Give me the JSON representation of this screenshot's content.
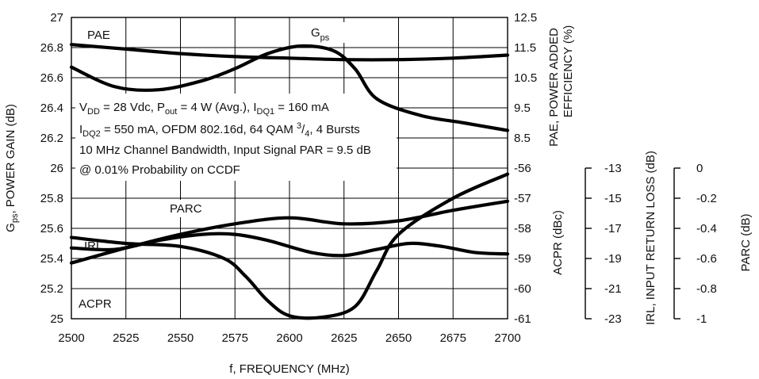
{
  "chart_data": {
    "type": "line",
    "xlabel": "f, FREQUENCY (MHz)",
    "x_ticks": [
      "2500",
      "2525",
      "2550",
      "2575",
      "2600",
      "2625",
      "2650",
      "2675",
      "2700"
    ],
    "xlim": [
      2500,
      2700
    ],
    "axes": {
      "gps": {
        "label_main": "G",
        "label_sub": "ps",
        "label_rest": ", POWER GAIN (dB)",
        "ticks": [
          "27",
          "26.8",
          "26.6",
          "26.4",
          "26.2",
          "26",
          "25.8",
          "25.6",
          "25.4",
          "25.2",
          "25"
        ],
        "lim": [
          25,
          27
        ]
      },
      "pae": {
        "label_line1": "PAE, POWER ADDED",
        "label_line2": "EFFICIENCY (%)",
        "ticks": [
          "12.5",
          "11.5",
          "10.5",
          "9.5",
          "8.5"
        ],
        "lim": [
          8.5,
          12.5
        ]
      },
      "acpr": {
        "label": "ACPR (dBc)",
        "ticks": [
          "-56",
          "-57",
          "-58",
          "-59",
          "-60",
          "-61"
        ],
        "lim": [
          -61,
          -56
        ]
      },
      "irl": {
        "label": "IRL, INPUT RETURN LOSS (dB)",
        "ticks": [
          "-13",
          "-15",
          "-17",
          "-19",
          "-21",
          "-23"
        ],
        "lim": [
          -23,
          -13
        ]
      },
      "parc": {
        "label": "PARC (dB)",
        "ticks": [
          "0",
          "-0.2",
          "-0.4",
          "-0.6",
          "-0.8",
          "-1"
        ],
        "lim": [
          -1,
          0
        ]
      }
    },
    "series": [
      {
        "name": "PAE",
        "axis": "pae",
        "x": [
          2500,
          2525,
          2550,
          2575,
          2600,
          2625,
          2650,
          2675,
          2700
        ],
        "y": [
          11.6,
          11.45,
          11.3,
          11.2,
          11.15,
          11.1,
          11.1,
          11.15,
          11.25
        ]
      },
      {
        "name": "Gps",
        "axis": "gps",
        "x": [
          2500,
          2520,
          2540,
          2560,
          2575,
          2590,
          2605,
          2620,
          2630,
          2640,
          2660,
          2680,
          2700
        ],
        "y": [
          26.67,
          26.54,
          26.52,
          26.58,
          26.66,
          26.76,
          26.81,
          26.78,
          26.66,
          26.46,
          26.35,
          26.3,
          26.25
        ]
      },
      {
        "name": "PARC",
        "axis": "parc",
        "x": [
          2500,
          2520,
          2540,
          2560,
          2575,
          2590,
          2610,
          2625,
          2640,
          2655,
          2670,
          2685,
          2700
        ],
        "y": [
          -0.53,
          -0.54,
          -0.48,
          -0.44,
          -0.44,
          -0.48,
          -0.56,
          -0.58,
          -0.54,
          -0.5,
          -0.52,
          -0.56,
          -0.57
        ]
      },
      {
        "name": "IRL",
        "axis": "irl",
        "x": [
          2500,
          2525,
          2550,
          2575,
          2600,
          2625,
          2650,
          2675,
          2700
        ],
        "y": [
          -19.3,
          -18.3,
          -17.4,
          -16.7,
          -16.3,
          -16.7,
          -16.5,
          -15.8,
          -15.2
        ]
      },
      {
        "name": "ACPR",
        "axis": "acpr",
        "x": [
          2500,
          2525,
          2550,
          2570,
          2580,
          2590,
          2600,
          2615,
          2630,
          2640,
          2650,
          2675,
          2700
        ],
        "y": [
          -58.3,
          -58.5,
          -58.6,
          -59.0,
          -59.6,
          -60.4,
          -60.9,
          -60.95,
          -60.6,
          -59.4,
          -58.2,
          -57.0,
          -56.2
        ]
      }
    ],
    "annotations": {
      "pae_label": "PAE",
      "gps_main": "G",
      "gps_sub": "ps",
      "parc_label": "PARC",
      "irl_label": "IRL",
      "acpr_label": "ACPR"
    },
    "conditions": {
      "l1_a": "V",
      "l1_a_sub": "DD",
      "l1_b": " = 28 Vdc, P",
      "l1_b_sub": "out",
      "l1_c": " = 4 W (Avg.), I",
      "l1_c_sub": "DQ1",
      "l1_d": " = 160 mA",
      "l2_a": "I",
      "l2_a_sub": "DQ2",
      "l2_b": " = 550 mA, OFDM 802.16d, 64 QAM ",
      "l2_sup": "3",
      "l2_c": "/",
      "l2_sub2": "4",
      "l2_d": ", 4 Bursts",
      "l3": "10 MHz Channel Bandwidth, Input Signal PAR = 9.5 dB",
      "l4": "@ 0.01% Probability on CCDF"
    },
    "grid": true
  }
}
